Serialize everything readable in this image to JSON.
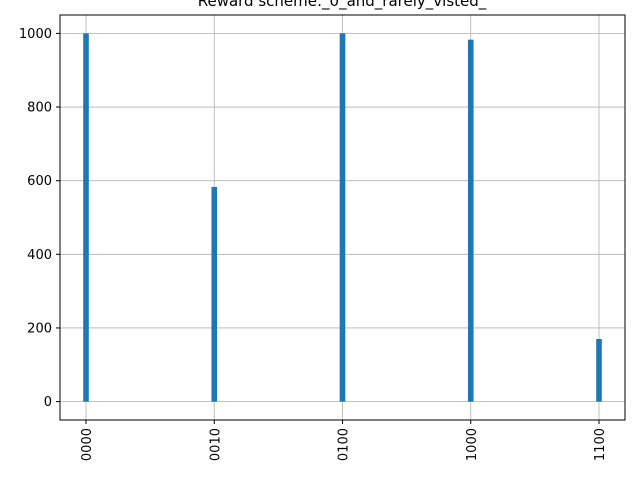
{
  "chart_data": {
    "type": "bar",
    "title": "Reward scheme:_0_and_rarely_visted_",
    "xlabel": "",
    "ylabel": "",
    "categories": [
      "0000",
      "0010",
      "0100",
      "1000",
      "1100"
    ],
    "values": [
      1000,
      583,
      1000,
      983,
      170
    ],
    "ylim": [
      -50,
      1050
    ],
    "yticks": [
      0,
      200,
      400,
      600,
      800,
      1000
    ],
    "grid": true,
    "bar_color": "#1f77b4",
    "grid_color": "#b0b0b0",
    "x_tick_rotation": "vertical"
  }
}
